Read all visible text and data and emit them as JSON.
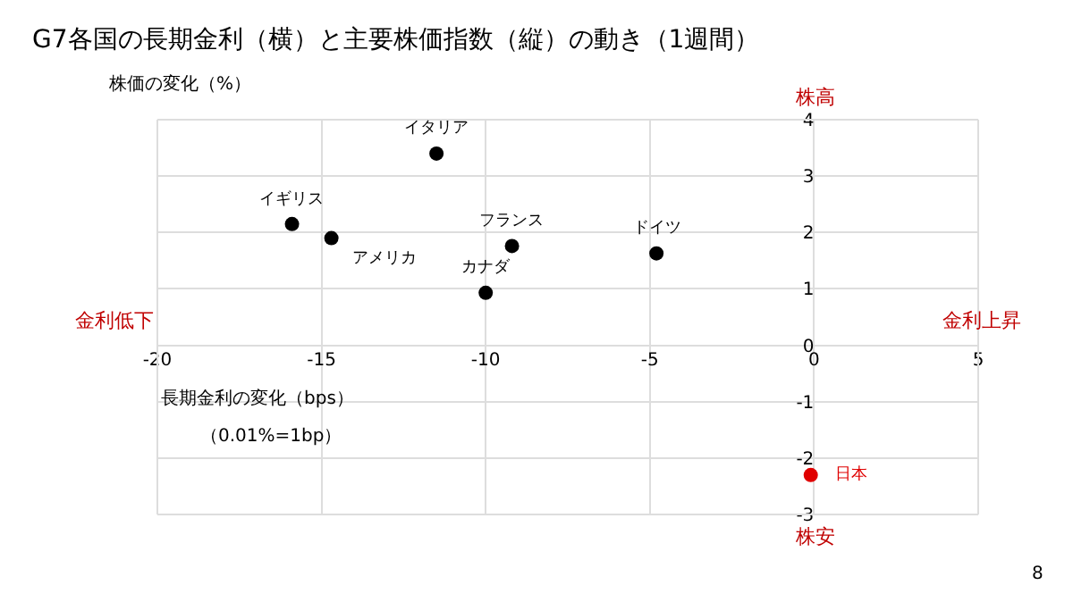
{
  "chart_data": {
    "type": "scatter",
    "title": "G7各国の長期金利（横）と主要株価指数（縦）の動き（1週間）",
    "xlabel": "長期金利の変化（bps）",
    "ylabel": "株価の変化（%）",
    "x": [
      -11.5,
      -15.9,
      -14.7,
      -9.2,
      -10.0,
      -4.8,
      -0.1
    ],
    "values": [
      3.4,
      2.15,
      1.9,
      1.76,
      0.93,
      1.63,
      -2.3
    ],
    "colors": [
      "#000000",
      "#000000",
      "#000000",
      "#000000",
      "#000000",
      "#000000",
      "#e00000"
    ],
    "xlim": [
      -20,
      5
    ],
    "xticks": [
      -20,
      -15,
      -10,
      -5,
      0,
      5
    ],
    "ylim": [
      -3,
      4
    ],
    "yticks": [
      -3,
      -2,
      -1,
      0,
      1,
      2,
      3,
      4
    ],
    "grid": true,
    "legend": false,
    "marker": "circle",
    "annotations": [
      {
        "text": "イタリア",
        "x": -11.5,
        "y": 3.4
      },
      {
        "text": "イギリス",
        "x": -15.9,
        "y": 2.15
      },
      {
        "text": "アメリカ",
        "x": -14.7,
        "y": 1.9
      },
      {
        "text": "フランス",
        "x": -9.2,
        "y": 1.76
      },
      {
        "text": "カナダ",
        "x": -10.0,
        "y": 0.93
      },
      {
        "text": "ドイツ",
        "x": -4.8,
        "y": 1.63
      },
      {
        "text": "日本",
        "x": -0.1,
        "y": -2.3
      },
      "株高",
      "金利低下",
      "金利上昇",
      "株安",
      "8",
      "（0.01%=1bp）"
    ]
  }
}
